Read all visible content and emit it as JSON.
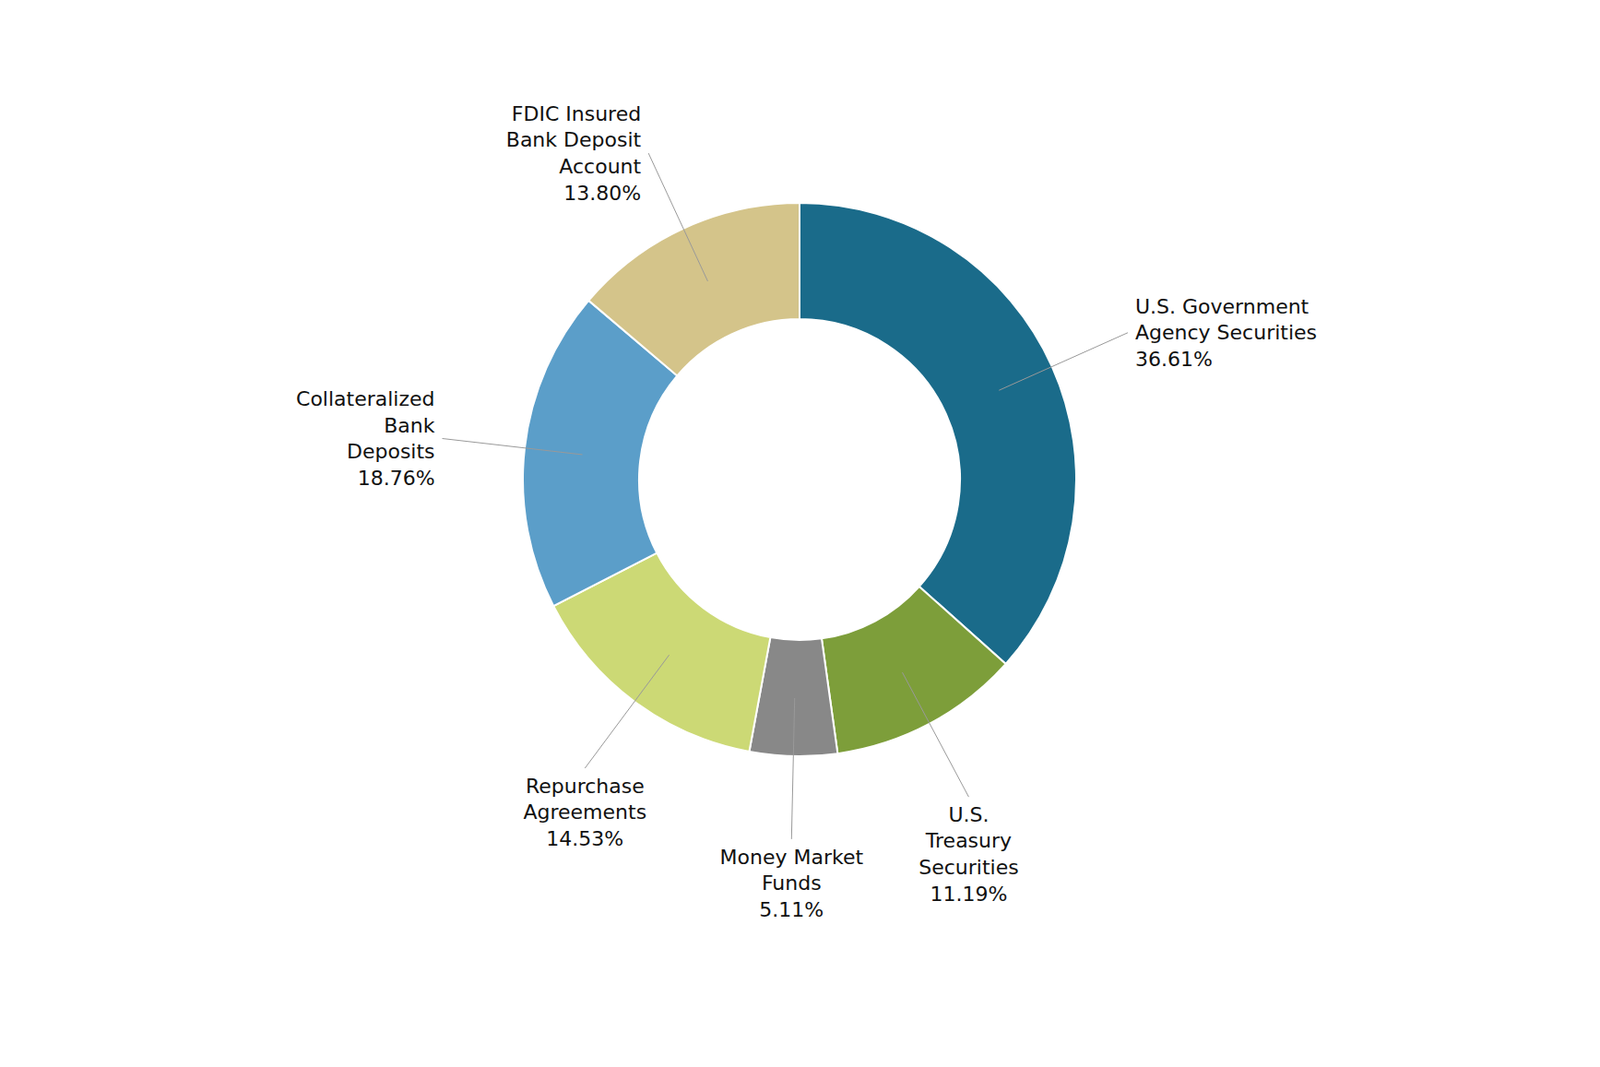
{
  "chart_data": {
    "type": "pie",
    "categories": [
      "U.S. Government\nAgency Securities",
      "U.S.\nTreasury\nSecurities",
      "Money Market\nFunds",
      "Repurchase\nAgreements",
      "Collateralized\nBank\nDeposits",
      "FDIC Insured\nBank Deposit\nAccount"
    ],
    "values": [
      36.61,
      11.19,
      5.11,
      14.53,
      18.76,
      13.8
    ],
    "value_labels": [
      "36.61%",
      "11.19%",
      "5.11%",
      "14.53%",
      "18.76%",
      "13.80%"
    ],
    "colors": [
      "#1a6b8a",
      "#7d9e3a",
      "#888888",
      "#ccd975",
      "#5b9ec9",
      "#d4c48a"
    ],
    "data_labels": true
  }
}
